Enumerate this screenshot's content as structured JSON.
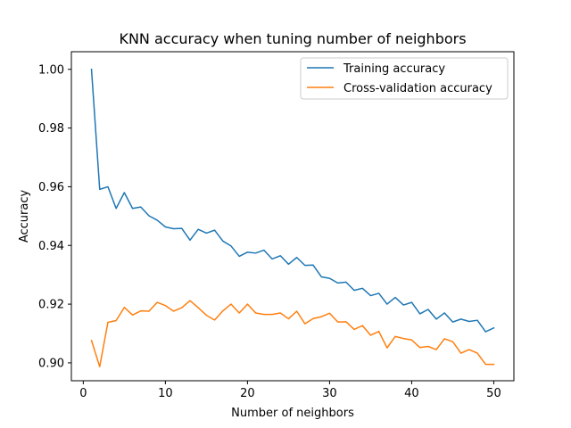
{
  "chart_data": {
    "type": "line",
    "title": "KNN accuracy when tuning number of neighbors",
    "xlabel": "Number of neighbors",
    "ylabel": "Accuracy",
    "xlim": [
      -1.45,
      52.45
    ],
    "ylim": [
      0.8939,
      1.006
    ],
    "xticks": [
      0,
      10,
      20,
      30,
      40,
      50
    ],
    "xtick_labels": [
      "0",
      "10",
      "20",
      "30",
      "40",
      "50"
    ],
    "yticks": [
      0.9,
      0.92,
      0.94,
      0.96,
      0.98,
      1.0
    ],
    "ytick_labels": [
      "0.90",
      "0.92",
      "0.94",
      "0.96",
      "0.98",
      "1.00"
    ],
    "grid": false,
    "legend_position": "top-right",
    "x": [
      1,
      2,
      3,
      4,
      5,
      6,
      7,
      8,
      9,
      10,
      11,
      12,
      13,
      14,
      15,
      16,
      17,
      18,
      19,
      20,
      21,
      22,
      23,
      24,
      25,
      26,
      27,
      28,
      29,
      30,
      31,
      32,
      33,
      34,
      35,
      36,
      37,
      38,
      39,
      40,
      41,
      42,
      43,
      44,
      45,
      46,
      47,
      48,
      49,
      50
    ],
    "series": [
      {
        "name": "Training accuracy",
        "color": "#1f77b4",
        "values": [
          1.0,
          0.9591,
          0.96,
          0.9526,
          0.958,
          0.9526,
          0.9531,
          0.9501,
          0.9486,
          0.9463,
          0.9457,
          0.9458,
          0.9418,
          0.9455,
          0.9442,
          0.9452,
          0.9415,
          0.9398,
          0.9363,
          0.9377,
          0.9374,
          0.9384,
          0.9354,
          0.9365,
          0.9336,
          0.9359,
          0.9332,
          0.9333,
          0.9293,
          0.9288,
          0.9272,
          0.9275,
          0.9247,
          0.9254,
          0.9229,
          0.9237,
          0.92,
          0.9223,
          0.9197,
          0.9206,
          0.9167,
          0.9182,
          0.9149,
          0.917,
          0.9139,
          0.9149,
          0.9141,
          0.9145,
          0.9106,
          0.9119
        ]
      },
      {
        "name": "Cross-validation accuracy",
        "color": "#ff7f0e",
        "values": [
          0.9076,
          0.8987,
          0.9138,
          0.9144,
          0.9189,
          0.9163,
          0.9177,
          0.9176,
          0.9206,
          0.9195,
          0.9176,
          0.9188,
          0.9212,
          0.9188,
          0.9162,
          0.9146,
          0.9177,
          0.92,
          0.917,
          0.92,
          0.917,
          0.9165,
          0.9165,
          0.917,
          0.915,
          0.9176,
          0.9133,
          0.9151,
          0.9157,
          0.9169,
          0.9139,
          0.914,
          0.9114,
          0.9127,
          0.9094,
          0.9107,
          0.9051,
          0.909,
          0.9083,
          0.9078,
          0.9052,
          0.9056,
          0.9045,
          0.9082,
          0.9072,
          0.9033,
          0.9045,
          0.9033,
          0.8995,
          0.8995
        ]
      }
    ]
  }
}
